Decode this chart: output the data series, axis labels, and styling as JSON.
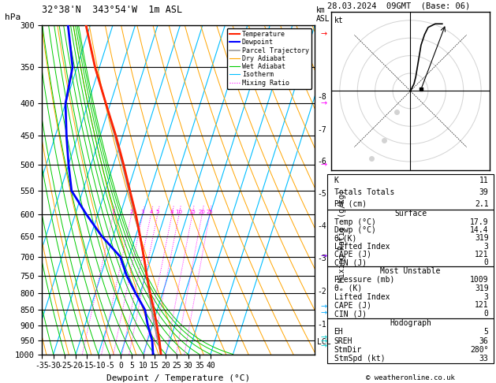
{
  "title_left": "32°38'N  343°54'W  1m ASL",
  "title_right": "28.03.2024  09GMT  (Base: 06)",
  "xlabel": "Dewpoint / Temperature (°C)",
  "pressure_ticks": [
    300,
    350,
    400,
    450,
    500,
    550,
    600,
    650,
    700,
    750,
    800,
    850,
    900,
    950,
    1000
  ],
  "temp_range": [
    -35,
    40
  ],
  "bg_color": "#ffffff",
  "plot_bg": "#ffffff",
  "isotherm_color": "#00bfff",
  "dry_adiabat_color": "#ffa500",
  "wet_adiabat_color": "#00cc00",
  "mixing_ratio_color": "#ff00ff",
  "temp_color": "#ff2200",
  "dewp_color": "#0000ff",
  "parcel_color": "#999999",
  "grid_color": "#000000",
  "km_ticks": [
    1,
    2,
    3,
    4,
    5,
    6,
    7,
    8
  ],
  "km_pressures": [
    898,
    795,
    705,
    627,
    557,
    495,
    440,
    390
  ],
  "skew_factor": 0.62,
  "p_min": 300,
  "p_max": 1000,
  "temp_profile_p": [
    1000,
    950,
    900,
    850,
    800,
    750,
    700,
    650,
    600,
    550,
    500,
    450,
    400,
    350,
    300
  ],
  "temp_profile_t": [
    17.9,
    15.2,
    12.0,
    8.5,
    4.5,
    0.5,
    -3.5,
    -8.0,
    -13.0,
    -19.0,
    -25.5,
    -33.0,
    -42.0,
    -52.0,
    -62.0
  ],
  "dewp_profile_p": [
    1000,
    950,
    900,
    850,
    800,
    750,
    700,
    650,
    600,
    550,
    500,
    450,
    400,
    350,
    300
  ],
  "dewp_profile_t": [
    14.4,
    12.0,
    8.0,
    4.5,
    -2.0,
    -8.5,
    -14.0,
    -25.0,
    -35.0,
    -45.0,
    -50.0,
    -55.0,
    -60.0,
    -62.0,
    -70.0
  ],
  "parcel_profile_p": [
    1000,
    950,
    900,
    850,
    800,
    750,
    700,
    650,
    600,
    550,
    500,
    450,
    400,
    350,
    300
  ],
  "parcel_profile_t": [
    17.9,
    14.5,
    11.0,
    7.5,
    4.0,
    0.5,
    -3.5,
    -8.0,
    -13.5,
    -19.5,
    -26.0,
    -33.5,
    -42.0,
    -52.0,
    -62.0
  ],
  "lcl_pressure": 955,
  "mixing_ratio_values": [
    1,
    2,
    3,
    4,
    5,
    8,
    10,
    15,
    20,
    25
  ],
  "mixing_ratio_labels": [
    "1",
    "2",
    "3",
    "4",
    "5",
    "8",
    "10",
    "15",
    "20",
    "25"
  ],
  "stats_K": "11",
  "stats_TT": "39",
  "stats_PW": "2.1",
  "stats_sfc_temp": "17.9",
  "stats_sfc_dewp": "14.4",
  "stats_sfc_thetae": "319",
  "stats_sfc_li": "3",
  "stats_sfc_cape": "121",
  "stats_sfc_cin": "0",
  "stats_mu_press": "1009",
  "stats_mu_thetae": "319",
  "stats_mu_li": "3",
  "stats_mu_cape": "121",
  "stats_mu_cin": "0",
  "stats_eh": "5",
  "stats_sreh": "36",
  "stats_stmdir": "280°",
  "stats_stmspd": "33"
}
